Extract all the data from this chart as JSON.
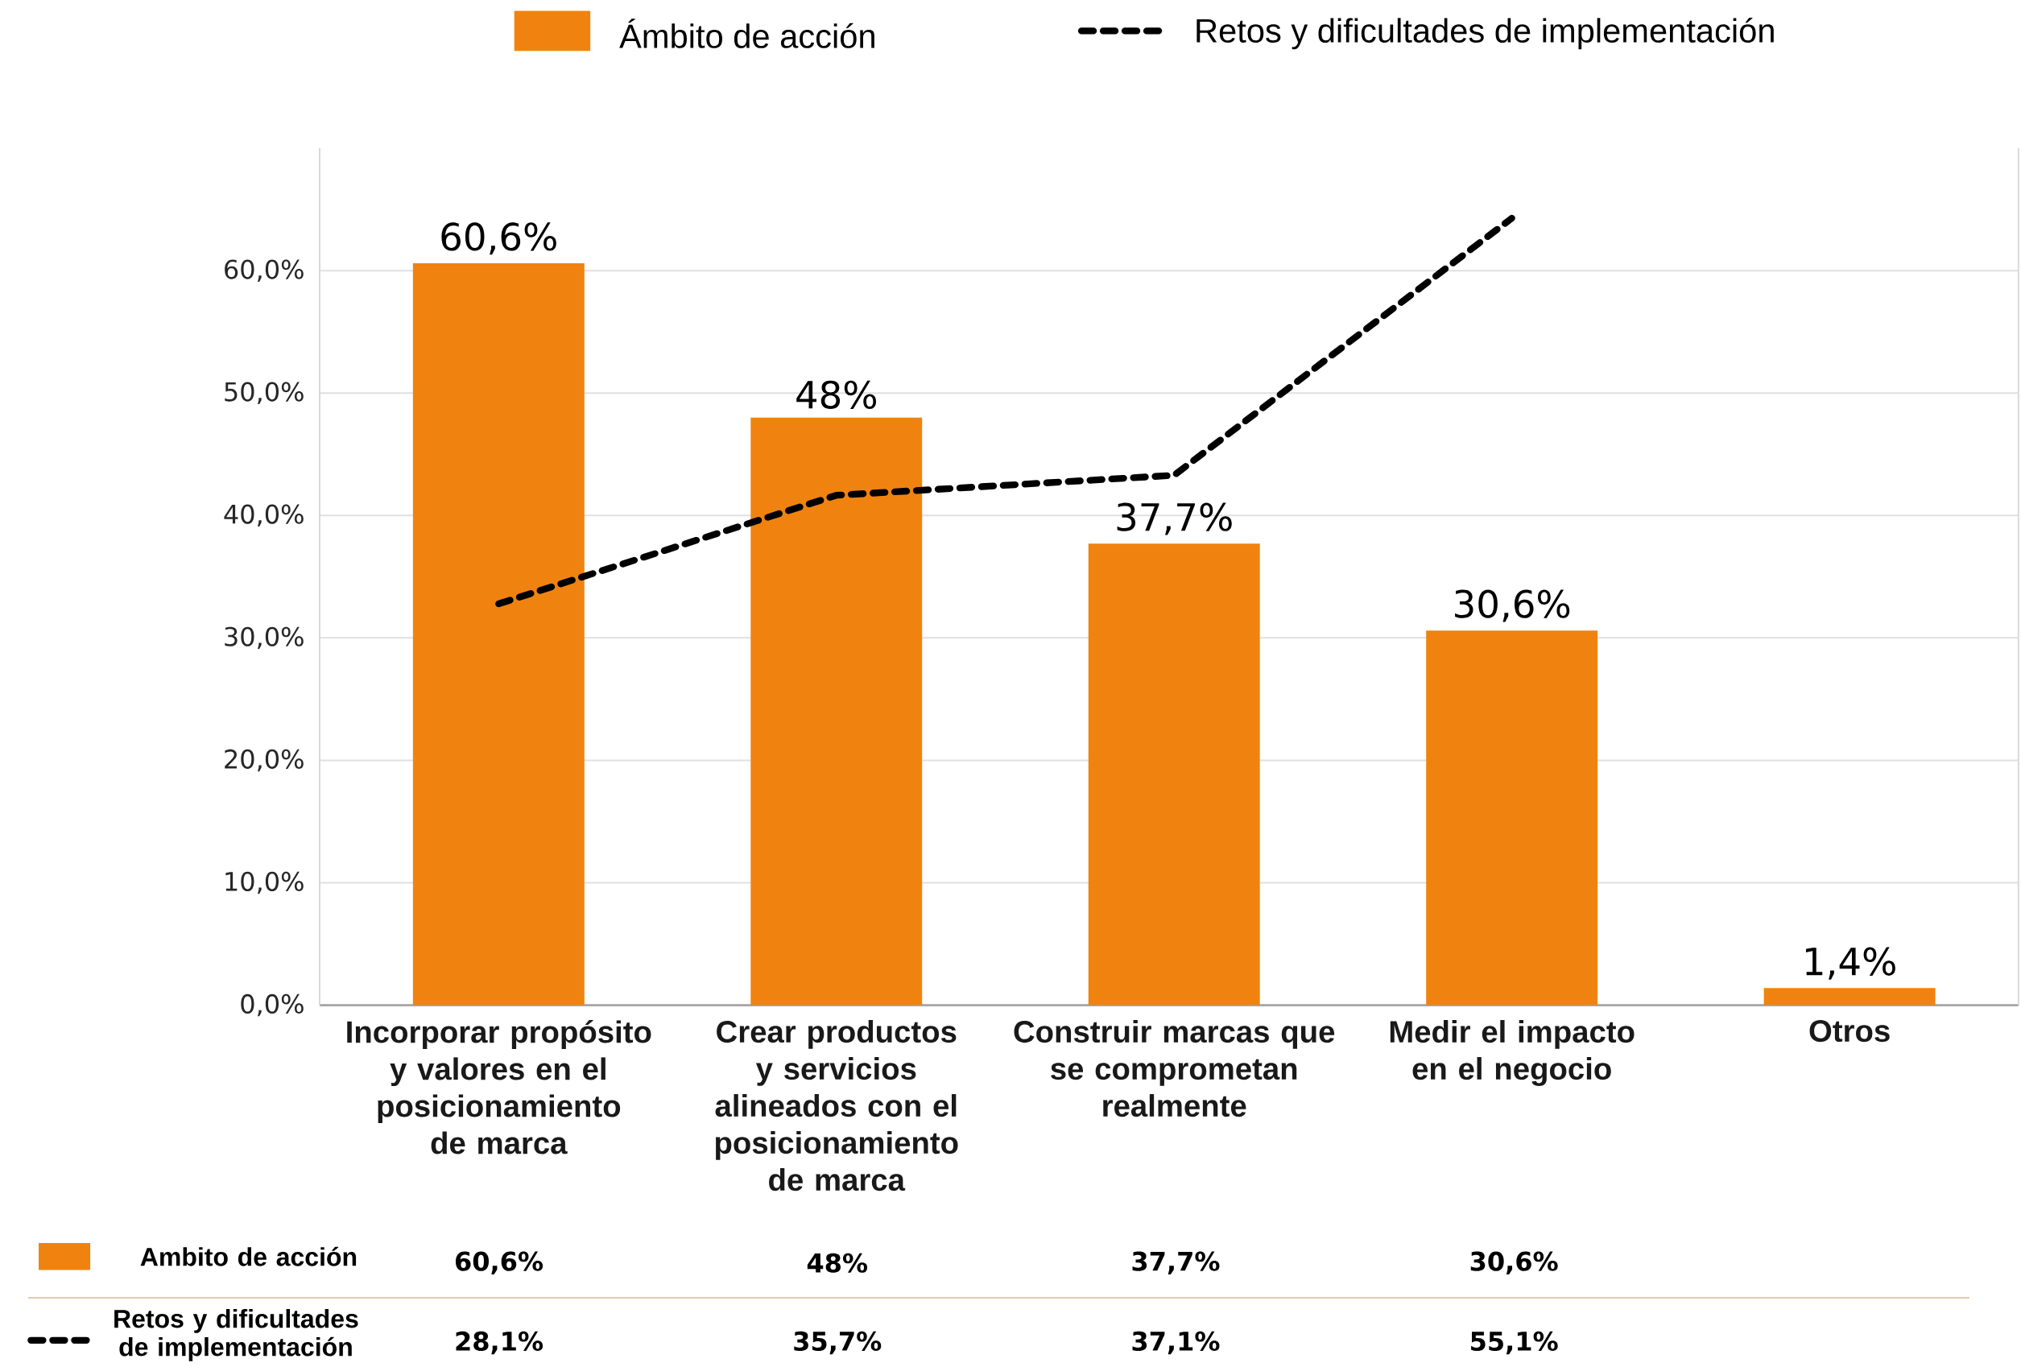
{
  "chart_data": {
    "type": "bar",
    "categories": [
      "Incorporar propósito y valores en el posicionamiento de marca",
      "Crear productos y servicios alineados con el posicionamiento de marca",
      "Construir marcas que se comprometan realmente",
      "Medir el impacto en el negocio",
      "Otros"
    ],
    "series": [
      {
        "name": "Ámbito de acción",
        "color": "#f0830f",
        "values": [
          60.6,
          48,
          37.7,
          30.6,
          1.4
        ],
        "value_labels": [
          "60,6%",
          "48%",
          "37,7%",
          "30,6%",
          "1,4%"
        ]
      },
      {
        "name": "Retos y dificultades de implementación",
        "type": "line",
        "axis": "y2",
        "color": "#000000",
        "line_style": "dashed",
        "values": [
          28.1,
          35.7,
          37.1,
          55.1,
          null
        ],
        "value_labels": [
          "28,1%",
          "35,7%",
          "37,1%",
          "55,1%",
          null
        ]
      }
    ],
    "ylim": [
      0,
      70
    ],
    "yticks": [
      {
        "value": 0,
        "label": "0,0%"
      },
      {
        "value": 10,
        "label": "10,0%"
      },
      {
        "value": 20,
        "label": "20,0%"
      },
      {
        "value": 30,
        "label": "30,0%"
      },
      {
        "value": 40,
        "label": "40,0%"
      },
      {
        "value": 50,
        "label": "50,0%"
      },
      {
        "value": 60,
        "label": "60,0%"
      }
    ],
    "y2lim": [
      0,
      60
    ],
    "tick_labels": "xy",
    "grid": "y",
    "legend": "top",
    "annotations": [
      "Ambito de acción"
    ]
  }
}
